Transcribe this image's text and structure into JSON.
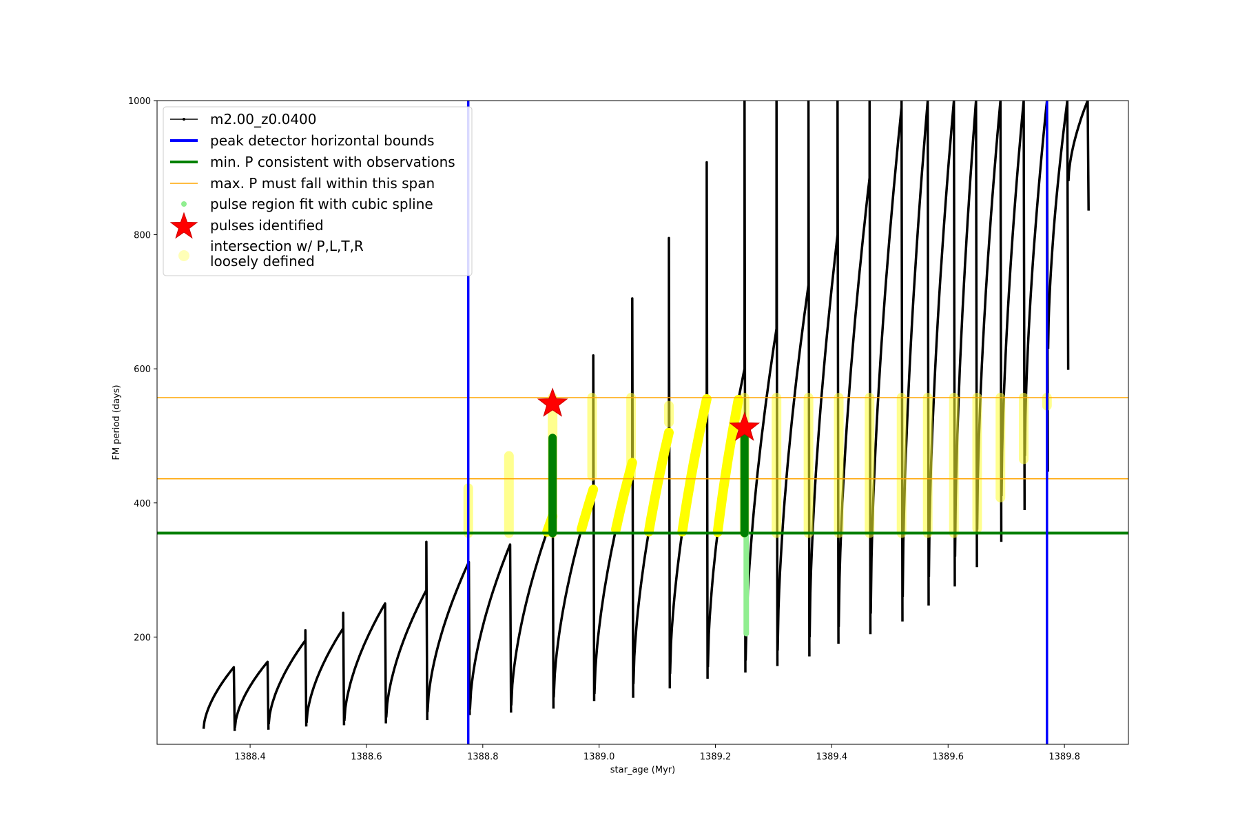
{
  "chart_data": {
    "type": "line",
    "title": "",
    "xlabel": "star_age (Myr)",
    "ylabel": "FM period (days)",
    "xlim": [
      1388.24,
      1389.91
    ],
    "ylim": [
      40,
      1000
    ],
    "xticks": [
      1388.4,
      1388.6,
      1388.8,
      1389.0,
      1389.2,
      1389.4,
      1389.6,
      1389.8
    ],
    "xtick_labels": [
      "1388.4",
      "1388.6",
      "1388.8",
      "1389.0",
      "1389.2",
      "1389.4",
      "1389.6",
      "1389.8"
    ],
    "yticks": [
      200,
      400,
      600,
      800,
      1000
    ],
    "ytick_labels": [
      "200",
      "400",
      "600",
      "800",
      "1000"
    ],
    "grid": false,
    "legend_position": "top-left",
    "legend": [
      {
        "label": "m2.00_z0.0400",
        "style": "line-dot",
        "color": "#000000"
      },
      {
        "label": "peak detector horizontal bounds",
        "style": "thick-line",
        "color": "#0000ff"
      },
      {
        "label": "min. P consistent with observations",
        "style": "thick-line",
        "color": "#008000"
      },
      {
        "label": "max. P must fall within this span",
        "style": "thin-line",
        "color": "#ffa500"
      },
      {
        "label": "pulse region fit with cubic spline",
        "style": "dot",
        "color": "#90ee90"
      },
      {
        "label": "pulses identified",
        "style": "star",
        "color": "#ff0000"
      },
      {
        "label": "intersection w/ P,L,T,R",
        "label2": "loosely defined",
        "style": "circle",
        "color": "#ffff99"
      }
    ],
    "peak_detector_bounds_x": [
      1388.775,
      1389.77
    ],
    "min_period_line_y": 355,
    "max_period_span_y": [
      436,
      557
    ],
    "pulses_identified": [
      {
        "x": 1388.92,
        "y": 548
      },
      {
        "x": 1389.25,
        "y": 512
      }
    ],
    "series": [
      {
        "name": "m2.00_z0.0400",
        "color": "#000000",
        "pulses": [
          {
            "start": 1388.32,
            "end": 1388.372,
            "minP": 63,
            "maxP": 155,
            "spikeTop": 155
          },
          {
            "start": 1388.374,
            "end": 1388.43,
            "minP": 65,
            "maxP": 163,
            "spikeTop": 163
          },
          {
            "start": 1388.432,
            "end": 1388.495,
            "minP": 70,
            "maxP": 195,
            "spikeTop": 210
          },
          {
            "start": 1388.497,
            "end": 1388.56,
            "minP": 72,
            "maxP": 213,
            "spikeTop": 236
          },
          {
            "start": 1388.562,
            "end": 1388.632,
            "minP": 75,
            "maxP": 250,
            "spikeTop": 250
          },
          {
            "start": 1388.634,
            "end": 1388.703,
            "minP": 80,
            "maxP": 270,
            "spikeTop": 342
          },
          {
            "start": 1388.705,
            "end": 1388.776,
            "minP": 88,
            "maxP": 312,
            "spikeTop": 312
          },
          {
            "start": 1388.778,
            "end": 1388.847,
            "minP": 92,
            "maxP": 338,
            "spikeTop": 338
          },
          {
            "start": 1388.849,
            "end": 1388.92,
            "minP": 98,
            "maxP": 380,
            "spikeTop": 490
          },
          {
            "start": 1388.922,
            "end": 1388.99,
            "minP": 110,
            "maxP": 420,
            "spikeTop": 620
          },
          {
            "start": 1388.992,
            "end": 1389.057,
            "minP": 115,
            "maxP": 460,
            "spikeTop": 705
          },
          {
            "start": 1389.059,
            "end": 1389.12,
            "minP": 130,
            "maxP": 505,
            "spikeTop": 795
          },
          {
            "start": 1389.122,
            "end": 1389.185,
            "minP": 145,
            "maxP": 555,
            "spikeTop": 908
          },
          {
            "start": 1389.187,
            "end": 1389.25,
            "minP": 155,
            "maxP": 600,
            "spikeTop": 1000
          },
          {
            "start": 1389.252,
            "end": 1389.305,
            "minP": 165,
            "maxP": 660,
            "spikeTop": 1000
          },
          {
            "start": 1389.307,
            "end": 1389.36,
            "minP": 180,
            "maxP": 725,
            "spikeTop": 1000
          },
          {
            "start": 1389.362,
            "end": 1389.41,
            "minP": 200,
            "maxP": 800,
            "spikeTop": 1000
          },
          {
            "start": 1389.412,
            "end": 1389.465,
            "minP": 215,
            "maxP": 885,
            "spikeTop": 1000
          },
          {
            "start": 1389.467,
            "end": 1389.52,
            "minP": 235,
            "maxP": 990,
            "spikeTop": 1000
          },
          {
            "start": 1389.522,
            "end": 1389.565,
            "minP": 260,
            "maxP": 1000,
            "spikeTop": 1000
          },
          {
            "start": 1389.567,
            "end": 1389.61,
            "minP": 290,
            "maxP": 1000,
            "spikeTop": 1000
          },
          {
            "start": 1389.612,
            "end": 1389.648,
            "minP": 320,
            "maxP": 1000,
            "spikeTop": 1000
          },
          {
            "start": 1389.65,
            "end": 1389.69,
            "minP": 360,
            "maxP": 1000,
            "spikeTop": 1000
          },
          {
            "start": 1389.692,
            "end": 1389.73,
            "minP": 410,
            "maxP": 1000,
            "spikeTop": 1000
          },
          {
            "start": 1389.732,
            "end": 1389.77,
            "minP": 470,
            "maxP": 1000,
            "spikeTop": 1000
          },
          {
            "start": 1389.772,
            "end": 1389.805,
            "minP": 630,
            "maxP": 1000,
            "spikeTop": 1000
          },
          {
            "start": 1389.807,
            "end": 1389.84,
            "minP": 880,
            "maxP": 1000,
            "spikeTop": 1000
          }
        ]
      },
      {
        "name": "pulse region fit with cubic spline",
        "color": "#008000",
        "segments": [
          {
            "x": 1388.92,
            "y1": 355,
            "y2": 497
          },
          {
            "x": 1389.25,
            "y1": 355,
            "y2": 497
          }
        ],
        "light_segments": [
          {
            "x": 1389.253,
            "y1": 205,
            "y2": 355
          }
        ]
      }
    ],
    "intersection_regions": [
      {
        "x": 1388.775,
        "y1": 355,
        "y2": 422
      },
      {
        "x": 1388.845,
        "y1": 355,
        "y2": 470
      },
      {
        "x": 1388.92,
        "y1": 355,
        "y2": 557
      },
      {
        "x": 1388.988,
        "y1": 440,
        "y2": 557
      },
      {
        "x": 1389.055,
        "y1": 440,
        "y2": 557
      },
      {
        "x": 1389.12,
        "y1": 520,
        "y2": 545
      },
      {
        "x": 1389.25,
        "y1": 355,
        "y2": 557
      },
      {
        "x": 1389.305,
        "y1": 355,
        "y2": 557
      },
      {
        "x": 1389.36,
        "y1": 355,
        "y2": 557
      },
      {
        "x": 1389.412,
        "y1": 355,
        "y2": 557
      },
      {
        "x": 1389.465,
        "y1": 355,
        "y2": 557
      },
      {
        "x": 1389.52,
        "y1": 355,
        "y2": 557
      },
      {
        "x": 1389.565,
        "y1": 355,
        "y2": 557
      },
      {
        "x": 1389.61,
        "y1": 355,
        "y2": 557
      },
      {
        "x": 1389.65,
        "y1": 362,
        "y2": 557
      },
      {
        "x": 1389.69,
        "y1": 408,
        "y2": 557
      },
      {
        "x": 1389.73,
        "y1": 465,
        "y2": 557
      },
      {
        "x": 1389.77,
        "y1": 545,
        "y2": 557
      }
    ]
  }
}
